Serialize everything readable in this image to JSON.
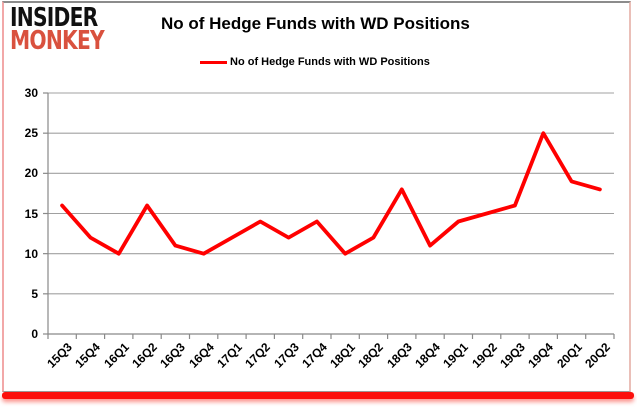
{
  "logo": {
    "line1": "INSIDER",
    "line2": "MONKEY",
    "line2_color": "#d9513e"
  },
  "header": {
    "title": "No of Hedge Funds with WD Positions"
  },
  "legend": {
    "label": "No of Hedge Funds with WD Positions",
    "line_color": "#ff0000"
  },
  "chart_data": {
    "type": "line",
    "title": "No of Hedge Funds with WD Positions",
    "series_name": "No of Hedge Funds with WD Positions",
    "categories": [
      "15Q3",
      "15Q4",
      "16Q1",
      "16Q2",
      "16Q3",
      "16Q4",
      "17Q1",
      "17Q2",
      "17Q3",
      "17Q4",
      "18Q1",
      "18Q2",
      "18Q3",
      "18Q4",
      "19Q1",
      "19Q2",
      "19Q3",
      "19Q4",
      "20Q1",
      "20Q2"
    ],
    "values": [
      16,
      12,
      10,
      16,
      11,
      10,
      12,
      14,
      12,
      14,
      10,
      12,
      18,
      11,
      14,
      15,
      16,
      25,
      19,
      18
    ],
    "xlabel": "",
    "ylabel": "",
    "ylim": [
      0,
      30
    ],
    "ytick_step": 5,
    "yticks": [
      0,
      5,
      10,
      15,
      20,
      25,
      30
    ],
    "grid": true,
    "legend_position": "top",
    "line_color": "#ff0000",
    "gridline_color": "#a0a0a0",
    "axis_color": "#898989"
  },
  "colors": {
    "background": "#ffffff",
    "card_bottom_bar": "#fc100c",
    "title_text": "#000000"
  }
}
